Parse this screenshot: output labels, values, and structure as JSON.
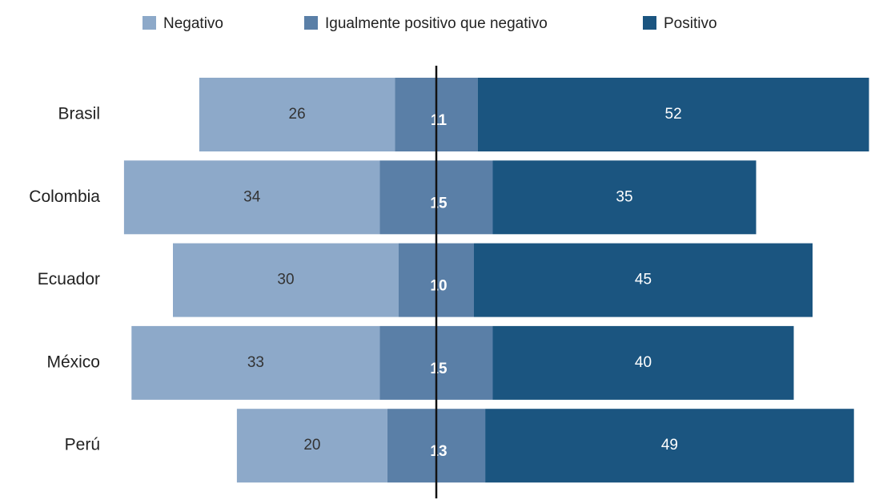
{
  "chart_data": {
    "type": "diverging-bar",
    "categories": [
      "Brasil",
      "Colombia",
      "Ecuador",
      "México",
      "Perú"
    ],
    "series": [
      {
        "name": "Negativo",
        "color": "#8da9c9",
        "values": [
          26,
          34,
          30,
          33,
          20
        ]
      },
      {
        "name": "Igualmente positivo que negativo",
        "color": "#5a7fa7",
        "values": [
          11,
          15,
          10,
          15,
          13
        ]
      },
      {
        "name": "Positivo",
        "color": "#1b5580",
        "values": [
          52,
          35,
          45,
          40,
          49
        ]
      }
    ],
    "legend": "top"
  }
}
